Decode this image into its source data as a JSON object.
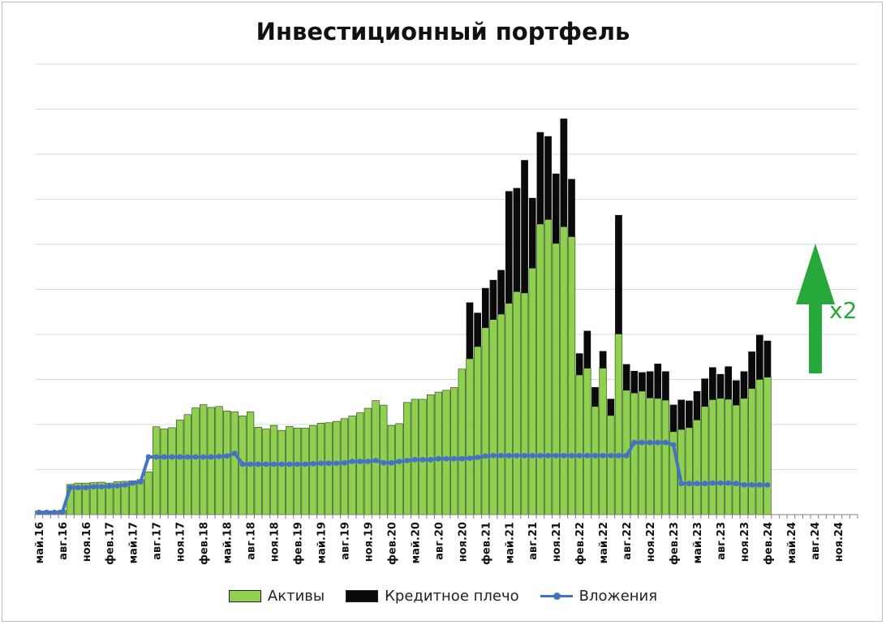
{
  "colors": {
    "assets": "#8fd14f",
    "leverage": "#0a0a0a",
    "investments": "#4472c4",
    "arrow": "#27a83b",
    "grid": "#d9d9d9"
  },
  "annotation": {
    "label": "x2"
  },
  "chart_data": {
    "type": "bar",
    "title": "Инвестиционный портфель",
    "stacked": true,
    "grid": true,
    "legend_position": "bottom",
    "yaxis_labels_shown": false,
    "ylim": [
      0,
      10
    ],
    "ticks": [
      "май.16",
      "авг.16",
      "ноя.16",
      "фев.17",
      "май.17",
      "авг.17",
      "ноя.17",
      "фев.18",
      "май.18",
      "авг.18",
      "ноя.18",
      "фев.19",
      "май.19",
      "авг.19",
      "ноя.19",
      "фев.20",
      "май.20",
      "авг.20",
      "ноя.20",
      "фев.21",
      "май.21",
      "авг.21",
      "ноя.21",
      "фев.22",
      "май.22",
      "авг.22",
      "ноя.22",
      "фев.23",
      "май.23",
      "авг.23",
      "ноя.23",
      "фев.24",
      "май.24",
      "авг.24",
      "ноя.24"
    ],
    "series": [
      {
        "name": "Активы",
        "kind": "bar",
        "values": [
          0.08,
          0.08,
          0.08,
          0.1,
          0.67,
          0.7,
          0.7,
          0.71,
          0.72,
          0.7,
          0.73,
          0.74,
          0.75,
          0.78,
          0.95,
          1.95,
          1.9,
          1.93,
          2.1,
          2.22,
          2.37,
          2.44,
          2.38,
          2.4,
          2.3,
          2.28,
          2.19,
          2.28,
          1.94,
          1.9,
          1.98,
          1.87,
          1.96,
          1.92,
          1.92,
          1.98,
          2.03,
          2.04,
          2.07,
          2.13,
          2.19,
          2.26,
          2.36,
          2.53,
          2.43,
          1.98,
          2.02,
          2.49,
          2.56,
          2.56,
          2.66,
          2.72,
          2.76,
          2.82,
          3.23,
          3.46,
          3.73,
          4.15,
          4.33,
          4.45,
          4.69,
          4.95,
          4.92,
          5.47,
          6.45,
          6.55,
          6.02,
          6.39,
          6.17,
          3.1,
          3.25,
          2.4,
          3.25,
          2.2,
          4.01,
          2.76,
          2.7,
          2.74,
          2.59,
          2.58,
          2.54,
          1.84,
          1.89,
          1.93,
          2.1,
          2.4,
          2.55,
          2.58,
          2.56,
          2.43,
          2.58,
          2.8,
          3.0,
          3.05
        ]
      },
      {
        "name": "Кредитное плечо",
        "kind": "bar",
        "values": [
          0,
          0,
          0,
          0,
          0,
          0,
          0,
          0,
          0,
          0,
          0,
          0,
          0,
          0,
          0,
          0,
          0,
          0,
          0,
          0,
          0,
          0,
          0,
          0,
          0,
          0,
          0,
          0,
          0,
          0,
          0,
          0,
          0,
          0,
          0,
          0,
          0,
          0,
          0,
          0,
          0,
          0,
          0,
          0,
          0,
          0,
          0,
          0,
          0,
          0,
          0,
          0,
          0,
          0,
          0,
          1.25,
          0.75,
          0.88,
          0.88,
          0.98,
          2.49,
          2.3,
          2.95,
          1.56,
          2.04,
          1.85,
          1.55,
          2.4,
          1.28,
          0.48,
          0.83,
          0.43,
          0.38,
          0.37,
          2.64,
          0.58,
          0.49,
          0.42,
          0.59,
          0.77,
          0.64,
          0.6,
          0.66,
          0.6,
          0.64,
          0.62,
          0.72,
          0.54,
          0.73,
          0.55,
          0.6,
          0.82,
          0.99,
          0.81
        ]
      },
      {
        "name": "Вложения",
        "kind": "line",
        "values": [
          0.05,
          0.05,
          0.05,
          0.05,
          0.6,
          0.6,
          0.6,
          0.62,
          0.62,
          0.63,
          0.64,
          0.66,
          0.7,
          0.73,
          1.28,
          1.28,
          1.28,
          1.28,
          1.28,
          1.28,
          1.28,
          1.28,
          1.28,
          1.29,
          1.3,
          1.36,
          1.12,
          1.12,
          1.12,
          1.12,
          1.12,
          1.12,
          1.12,
          1.12,
          1.12,
          1.13,
          1.14,
          1.14,
          1.14,
          1.15,
          1.18,
          1.18,
          1.18,
          1.2,
          1.15,
          1.15,
          1.18,
          1.2,
          1.22,
          1.22,
          1.22,
          1.24,
          1.24,
          1.24,
          1.24,
          1.25,
          1.27,
          1.3,
          1.31,
          1.31,
          1.31,
          1.31,
          1.31,
          1.31,
          1.31,
          1.31,
          1.31,
          1.31,
          1.31,
          1.31,
          1.31,
          1.31,
          1.31,
          1.31,
          1.31,
          1.31,
          1.6,
          1.6,
          1.6,
          1.6,
          1.6,
          1.55,
          0.69,
          0.69,
          0.69,
          0.69,
          0.7,
          0.7,
          0.7,
          0.69,
          0.66,
          0.66,
          0.66,
          0.66
        ]
      }
    ]
  }
}
